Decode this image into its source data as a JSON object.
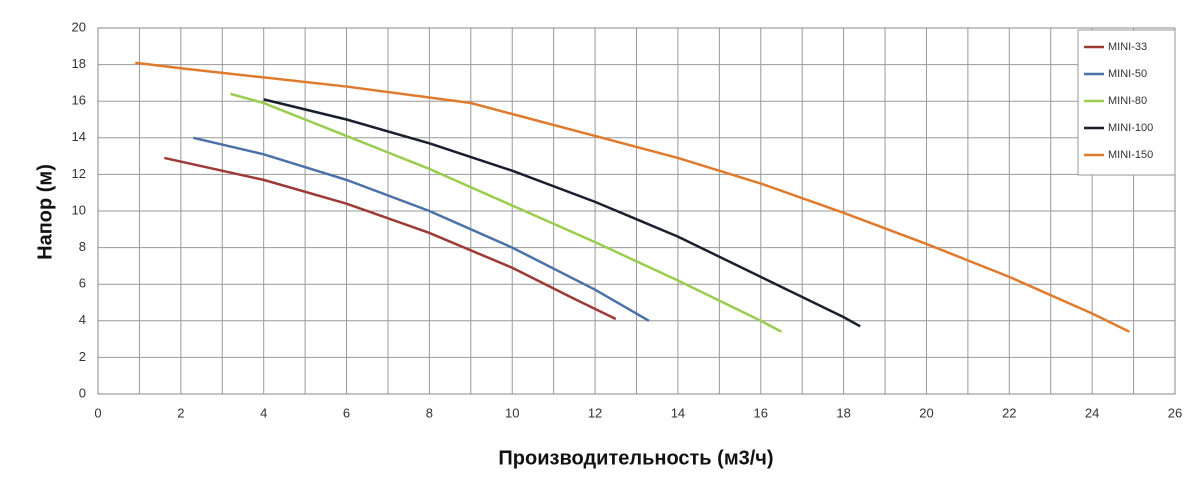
{
  "chart_data": {
    "type": "line",
    "xlabel": "Производительность (м3/ч)",
    "ylabel": "Напор (м)",
    "xlim": [
      0,
      26
    ],
    "xticks": [
      0,
      2,
      4,
      6,
      8,
      10,
      12,
      14,
      16,
      18,
      20,
      22,
      24,
      26
    ],
    "xminor": [
      1,
      3,
      5,
      7,
      9,
      11,
      13,
      15,
      17,
      19,
      21,
      23,
      25
    ],
    "ylim": [
      0,
      20
    ],
    "yticks": [
      0,
      2,
      4,
      6,
      8,
      10,
      12,
      14,
      16,
      18,
      20
    ],
    "grid": true,
    "legend": "top-right",
    "series": [
      {
        "name": "MINI-33",
        "color": "#9e3a36",
        "x": [
          1.6,
          4,
          6,
          8,
          10,
          11.5,
          12.5
        ],
        "values": [
          12.9,
          11.7,
          10.4,
          8.8,
          6.9,
          5.2,
          4.1
        ]
      },
      {
        "name": "MINI-50",
        "color": "#4a72a8",
        "x": [
          2.3,
          4,
          6,
          8,
          10,
          12,
          13.3
        ],
        "values": [
          14.0,
          13.1,
          11.7,
          10.0,
          8.0,
          5.7,
          4.0
        ]
      },
      {
        "name": "MINI-80",
        "color": "#9acd4e",
        "x": [
          3.2,
          4,
          6,
          8,
          10,
          12,
          14,
          16,
          16.5
        ],
        "values": [
          16.4,
          15.9,
          14.1,
          12.3,
          10.3,
          8.3,
          6.2,
          4.0,
          3.4
        ]
      },
      {
        "name": "MINI-100",
        "color": "#1a1f2e",
        "x": [
          4,
          6,
          8,
          10,
          12,
          14,
          16,
          18,
          18.4
        ],
        "values": [
          16.1,
          15.0,
          13.7,
          12.2,
          10.5,
          8.6,
          6.4,
          4.2,
          3.7
        ]
      },
      {
        "name": "MINI-150",
        "color": "#e07b2e",
        "x": [
          0.9,
          2,
          4,
          6,
          8,
          9,
          10,
          12,
          14,
          16,
          18,
          20,
          22,
          24,
          24.9
        ],
        "values": [
          18.1,
          17.8,
          17.3,
          16.8,
          16.2,
          15.9,
          15.3,
          14.1,
          12.9,
          11.5,
          9.9,
          8.2,
          6.4,
          4.4,
          3.4
        ]
      }
    ]
  }
}
